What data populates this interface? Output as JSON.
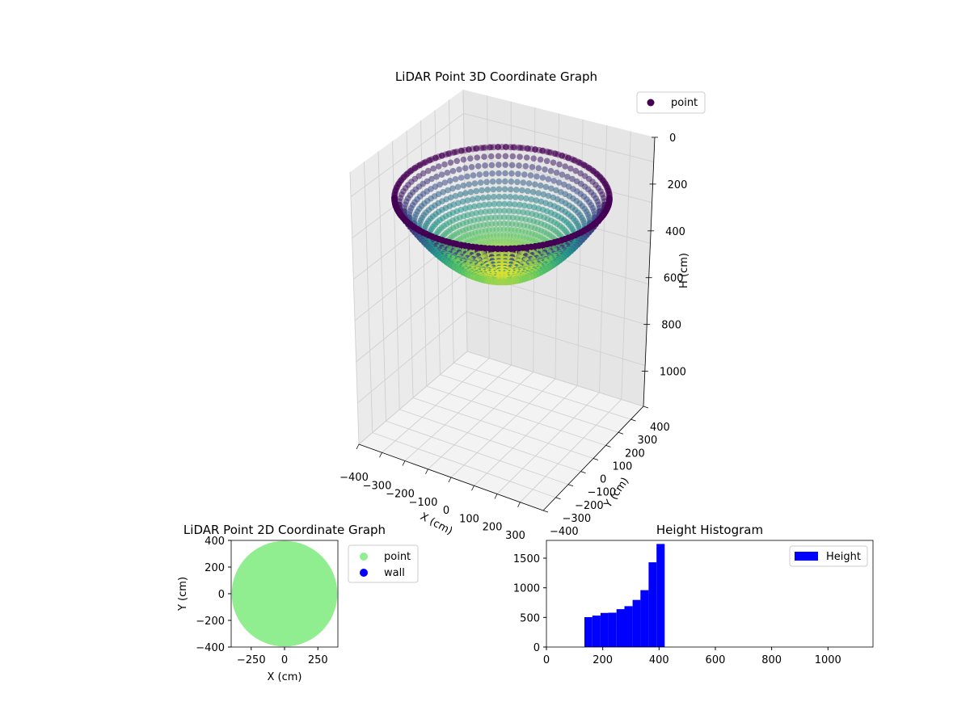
{
  "chart_data": [
    {
      "type": "scatter3d",
      "title": "LiDAR Point 3D Coordinate Graph",
      "xlabel": "X (cm)",
      "ylabel": "Y (cm)",
      "zlabel": "H (cm)",
      "xlim": [
        -400,
        400
      ],
      "ylim": [
        -400,
        400
      ],
      "zlim": [
        0,
        1150
      ],
      "x_ticks": [
        "−400",
        "−300",
        "−200",
        "−100",
        "0",
        "100",
        "200",
        "300"
      ],
      "y_ticks": [
        "−400",
        "−300",
        "−200",
        "−100",
        "0",
        "100",
        "200",
        "300",
        "400"
      ],
      "z_ticks": [
        "0",
        "200",
        "400",
        "600",
        "800",
        "1000"
      ],
      "z_inverted": true,
      "colormap": "viridis",
      "shape": "bowl",
      "bowl_radius": 400,
      "rim_height": 140,
      "bottom_height": 420,
      "series": [
        {
          "name": "point",
          "legend_color": "#440154"
        }
      ],
      "legend_position": "top-right",
      "grid": true
    },
    {
      "type": "scatter",
      "title": "LiDAR Point 2D Coordinate Graph",
      "xlabel": "X (cm)",
      "ylabel": "Y (cm)",
      "xlim": [
        -400,
        400
      ],
      "ylim": [
        -400,
        400
      ],
      "x_ticks": [
        "−250",
        "0",
        "250"
      ],
      "y_ticks": [
        "−400",
        "−200",
        "0",
        "200",
        "400"
      ],
      "disk_radius": 400,
      "series": [
        {
          "name": "point",
          "color": "#90ee90"
        },
        {
          "name": "wall",
          "color": "#0000ff"
        }
      ],
      "legend_position": "outside-right"
    },
    {
      "type": "histogram",
      "title": "Height Histogram",
      "xlim": [
        0,
        1160
      ],
      "ylim": [
        0,
        1800
      ],
      "x_ticks": [
        "0",
        "200",
        "400",
        "600",
        "800",
        "1000"
      ],
      "y_ticks": [
        "0",
        "500",
        "1000",
        "1500"
      ],
      "bin_edges": [
        135,
        163,
        192,
        220,
        249,
        277,
        306,
        334,
        363,
        391,
        420
      ],
      "counts": [
        505,
        530,
        575,
        580,
        640,
        690,
        795,
        960,
        1430,
        1740
      ],
      "series": [
        {
          "name": "Height",
          "color": "#0000ff"
        }
      ],
      "legend_position": "top-right"
    }
  ]
}
